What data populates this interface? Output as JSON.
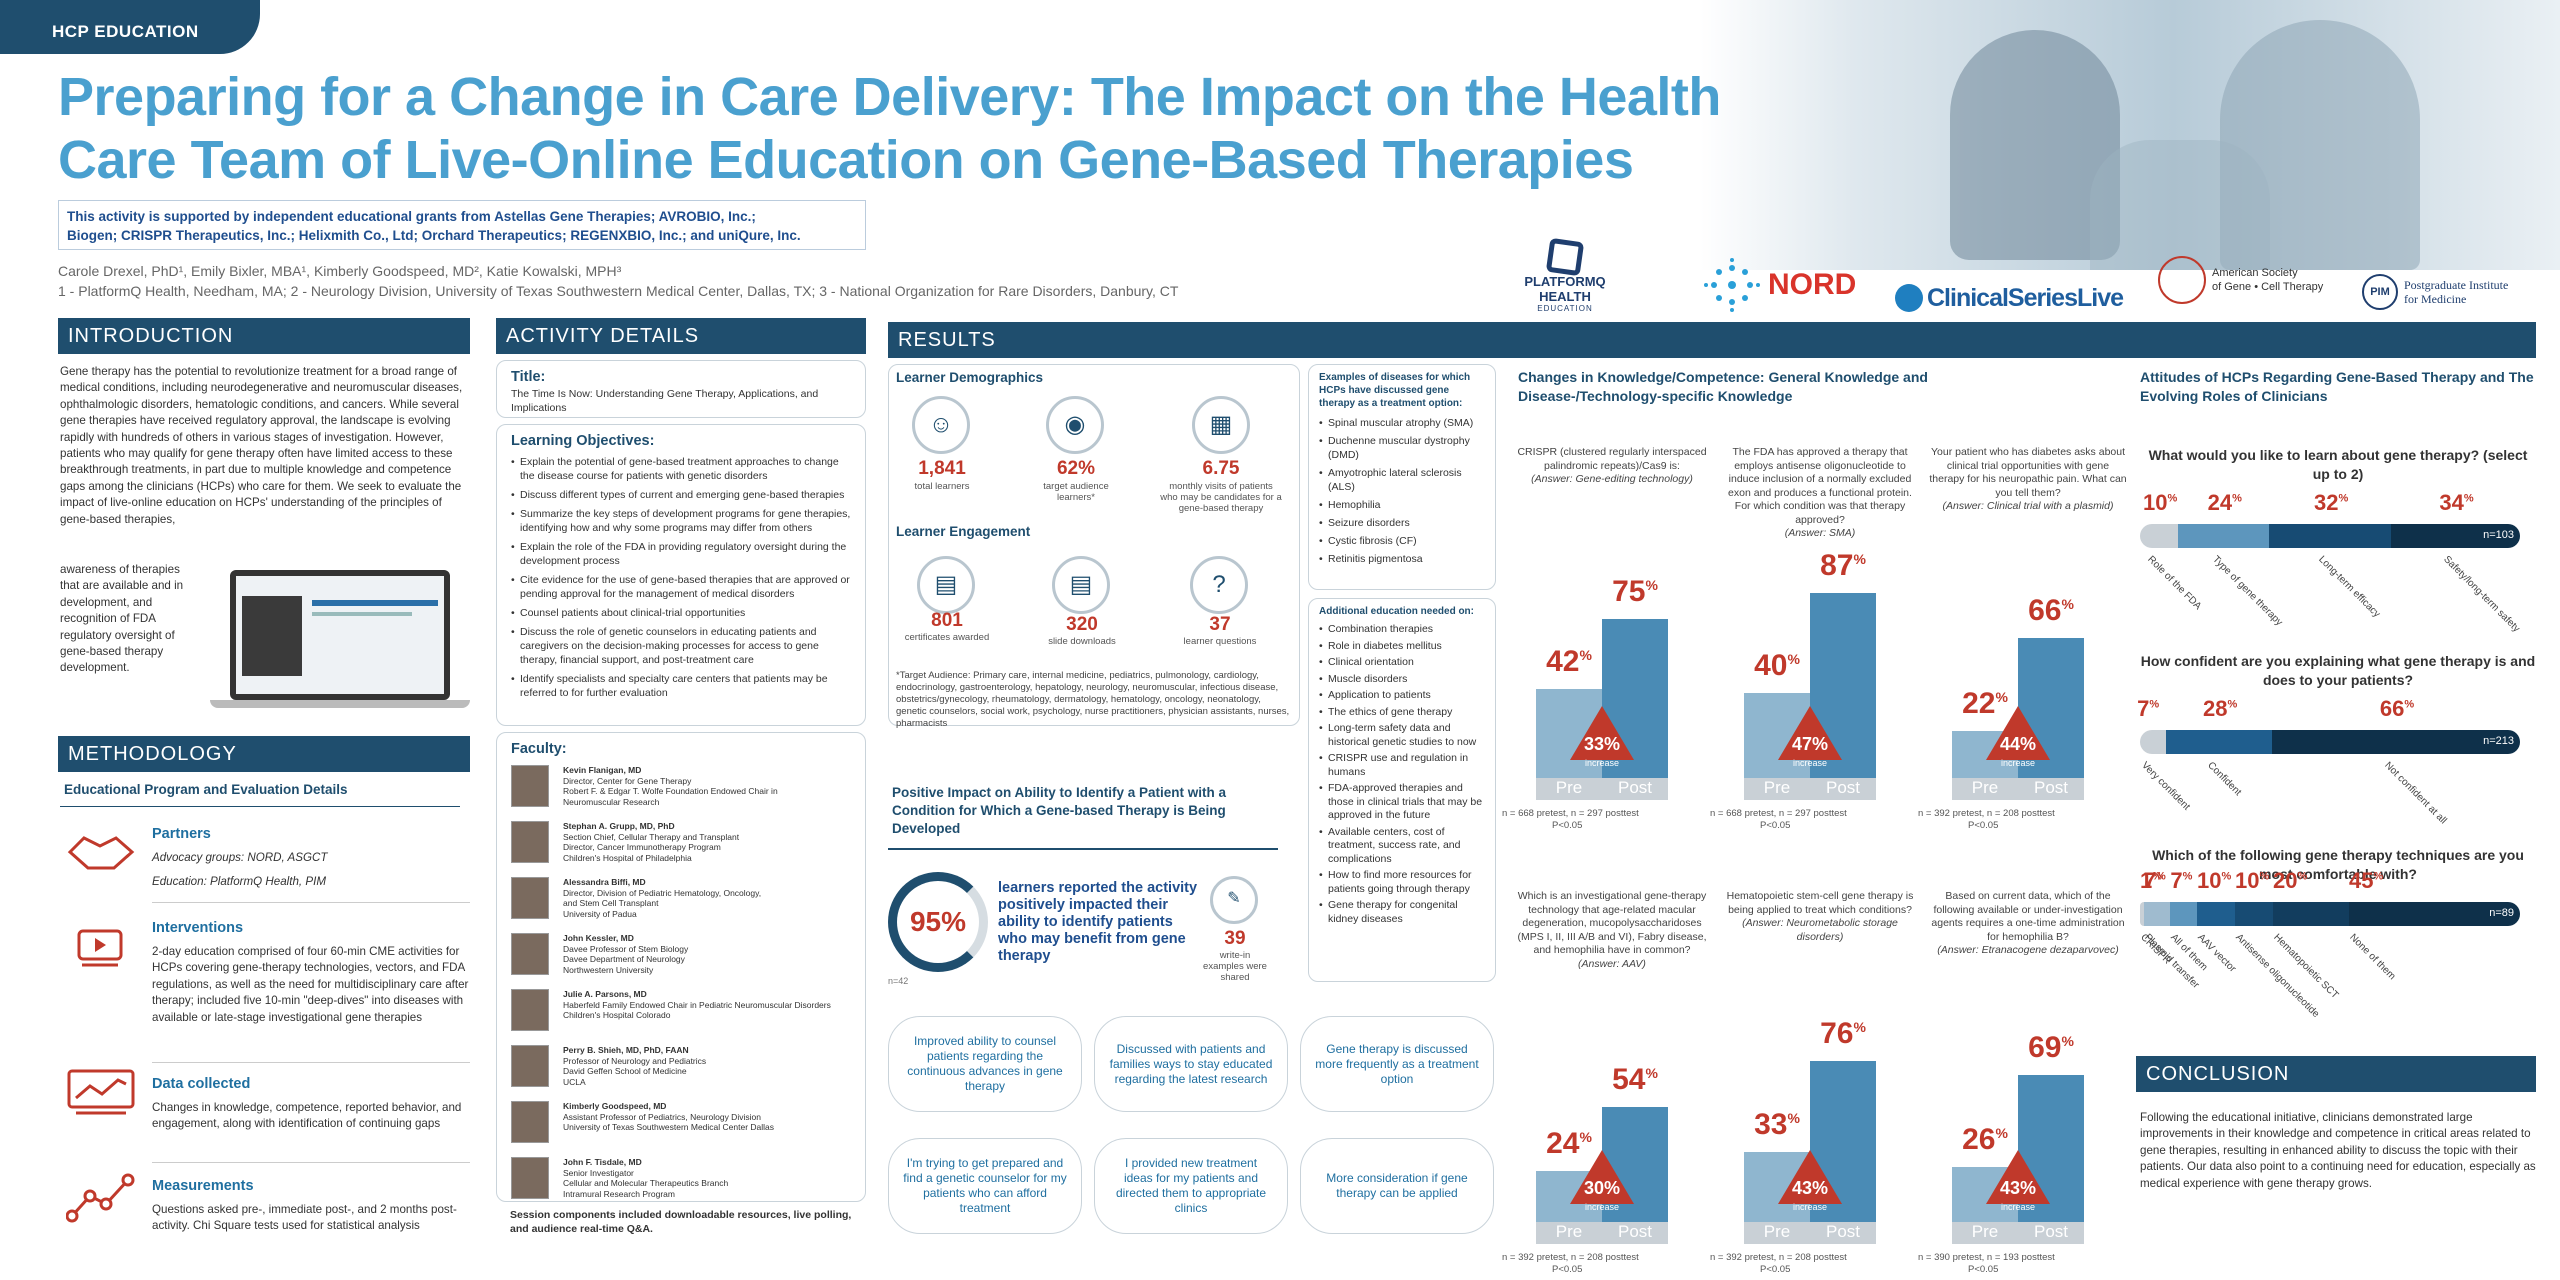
{
  "tag": "HCP EDUCATION",
  "title1": "Preparing for a Change in Care Delivery: The Impact on the Health",
  "title2": "Care Team of Live-Online Education on Gene-Based Therapies",
  "grant1": "This activity is supported by independent educational grants from Astellas Gene Therapies; AVROBIO, Inc.;",
  "grant2": "Biogen; CRISPR Therapeutics, Inc.; Helixmith Co., Ltd; Orchard Therapeutics; REGENXBIO, Inc.; and uniQure, Inc.",
  "authors": "Carole Drexel, PhD¹, Emily Bixler, MBA¹, Kimberly Goodspeed, MD², Katie Kowalski, MPH³",
  "affil": "1 - PlatformQ Health, Needham, MA; 2 - Neurology Division, University of Texas Southwestern Medical Center, Dallas, TX; 3 - National Organization for Rare Disorders, Danbury, CT",
  "logos": {
    "pq1": "PLATFORMQ HEALTH",
    "pq2": "EDUCATION",
    "nord": "NORD",
    "csl": "ClinicalSeriesLive",
    "asgct1": "American Society",
    "asgct2": "of Gene • Cell Therapy",
    "pim": "PIM",
    "pim1": "Postgraduate Institute",
    "pim2": "for Medicine"
  },
  "intro": {
    "header": "INTRODUCTION",
    "text1": "Gene therapy has the potential to revolutionize treatment for a broad range of medical conditions, including neurodegenerative and neuromuscular diseases, ophthalmologic disorders, hematologic conditions, and cancers. While several gene therapies have received regulatory approval, the landscape is evolving rapidly with hundreds of others in various stages of investigation. However, patients who may qualify for gene therapy often have limited access to these breakthrough treatments, in part due to multiple knowledge and competence gaps among the clinicians (HCPs) who care for them. We seek to evaluate the impact of live-online education on HCPs' understanding of the principles of gene-based therapies,",
    "text2": "awareness of therapies that are available and in development, and recognition of FDA regulatory oversight of gene-based therapy development."
  },
  "method": {
    "header": "METHODOLOGY",
    "subtitle": "Educational Program and Evaluation Details",
    "partners_t": "Partners",
    "partners_1": "Advocacy groups: NORD, ASGCT",
    "partners_2": "Education: PlatformQ Health, PIM",
    "interv_t": "Interventions",
    "interv": "2-day education comprised of four 60-min CME activities for HCPs covering gene-therapy technologies, vectors, and FDA regulations, as well as the need for multidisciplinary care after therapy; included five 10-min \"deep-dives\" into diseases with available or late-stage investigational gene therapies",
    "data_t": "Data collected",
    "data": "Changes in knowledge, competence, reported behavior, and engagement, along with identification of continuing gaps",
    "meas_t": "Measurements",
    "meas": "Questions asked pre-, immediate post-, and 2 months post-activity. Chi Square tests used for statistical analysis"
  },
  "activity": {
    "header": "ACTIVITY DETAILS",
    "title_t": "Title:",
    "title": "The Time Is Now: Understanding Gene Therapy, Applications, and Implications",
    "obj_t": "Learning Objectives:",
    "objectives": [
      "Explain the potential of gene-based treatment approaches to change the disease course for patients with genetic disorders",
      "Discuss different types of current and emerging gene-based therapies",
      "Summarize the key steps of development programs for gene therapies, identifying how and why some programs may differ from others",
      "Explain the role of the FDA in providing regulatory oversight during the development process",
      "Cite evidence for the use of gene-based therapies that are approved or pending approval for the management of medical disorders",
      "Counsel patients about clinical-trial opportunities",
      "Discuss the role of genetic counselors in educating patients and caregivers on the decision-making processes for access to gene therapy, financial support, and post-treatment care",
      "Identify specialists and specialty care centers that patients may be referred to for further evaluation"
    ],
    "faculty_t": "Faculty:",
    "faculty": [
      {
        "name": "Kevin Flanigan, MD",
        "l1": "Director, Center for Gene Therapy",
        "l2": "Robert F. & Edgar T. Wolfe Foundation Endowed Chair in",
        "l3": "Neuromuscular Research"
      },
      {
        "name": "Stephan A. Grupp, MD, PhD",
        "l1": "Section Chief, Cellular Therapy and Transplant",
        "l2": "Director, Cancer Immunotherapy Program",
        "l3": "Children's Hospital of Philadelphia"
      },
      {
        "name": "Alessandra Biffi, MD",
        "l1": "Director, Division of Pediatric Hematology, Oncology,",
        "l2": "and Stem Cell Transplant",
        "l3": "University of Padua"
      },
      {
        "name": "John Kessler, MD",
        "l1": "Davee Professor of Stem Biology",
        "l2": "Davee Department of Neurology",
        "l3": "Northwestern University"
      },
      {
        "name": "Julie A. Parsons, MD",
        "l1": "Haberfeld Family Endowed Chair in Pediatric Neuromuscular Disorders",
        "l2": "Children's Hospital Colorado",
        "l3": ""
      },
      {
        "name": "Perry B. Shieh, MD, PhD, FAAN",
        "l1": "Professor of Neurology and Pediatrics",
        "l2": "David Geffen School of Medicine",
        "l3": "UCLA"
      },
      {
        "name": "Kimberly Goodspeed, MD",
        "l1": "Assistant Professor of Pediatrics, Neurology Division",
        "l2": "University of Texas Southwestern Medical Center Dallas",
        "l3": ""
      },
      {
        "name": "John F. Tisdale, MD",
        "l1": "Senior Investigator",
        "l2": "Cellular and Molecular Therapeutics Branch",
        "l3": "Intramural Research Program"
      }
    ],
    "footer": "Session components included downloadable resources, live polling, and audience real-time Q&A."
  },
  "results": {
    "header": "RESULTS",
    "demo_t": "Learner Demographics",
    "learners": "1,841",
    "learners_l": "total learners",
    "target": "62%",
    "target_l": "target audience learners*",
    "visits": "6.75",
    "visits_l": "monthly visits of patients who may be candidates for a gene-based therapy",
    "engage_t": "Learner Engagement",
    "certs": "801",
    "certs_l": "certificates awarded",
    "slides": "320",
    "slides_l": "slide downloads",
    "questions": "37",
    "questions_l": "learner questions",
    "footnote": "*Target Audience: Primary care, internal medicine, pediatrics, pulmonology, cardiology, endocrinology, gastroenterology, hepatology, neurology, neuromuscular, infectious disease, obstetrics/gynecology, rheumatology, dermatology, hematology, oncology, neonatology, genetic counselors, social work, psychology, nurse practitioners, physician assistants, nurses, pharmacists",
    "diseases_t": "Examples of diseases for which HCPs have discussed gene therapy as a treatment option:",
    "diseases": [
      "Spinal muscular atrophy (SMA)",
      "Duchenne muscular dystrophy (DMD)",
      "Amyotrophic lateral sclerosis (ALS)",
      "Hemophilia",
      "Seizure disorders",
      "Cystic fibrosis (CF)",
      "Retinitis pigmentosa"
    ],
    "addl_t": "Additional education needed on:",
    "addl": [
      "Combination therapies",
      "Role in diabetes mellitus",
      "Clinical orientation",
      "Muscle disorders",
      "Application to patients",
      "The ethics of gene therapy",
      "Long-term safety data and historical genetic studies to now",
      "CRISPR use and regulation in humans",
      "FDA-approved therapies and those in clinical trials that may be approved in the future",
      "Available centers, cost of treatment, success rate, and complications",
      "How to find more resources for patients going through therapy",
      "Gene therapy for congenital kidney diseases"
    ],
    "pos_t": "Positive Impact on Ability to Identify a Patient with a Condition for Which a Gene-based Therapy is Being Developed",
    "pos_pct": "95%",
    "pos_text": "learners reported the activity positively impacted their ability to identify patients who may benefit from gene therapy",
    "pos_n": "n=42",
    "writein": "39",
    "writein_l": "write-in examples were shared",
    "quotes": [
      "Improved ability to counsel patients regarding the continuous advances in gene therapy",
      "Discussed with patients and families ways to stay educated regarding the latest research",
      "Gene therapy is discussed more frequently as a treatment option",
      "I'm trying to get prepared and find a genetic counselor for my patients who can afford treatment",
      "I provided new treatment ideas for my patients and directed them to appropriate clinics",
      "More consideration if gene therapy can be applied"
    ]
  },
  "chart_data": [
    {
      "type": "bar",
      "title": "Changes in Knowledge/Competence: General Knowledge and Disease-/Technology-specific Knowledge",
      "panels": [
        {
          "q": "CRISPR (clustered regularly interspaced palindromic repeats)/Cas9 is:",
          "a": "(Answer: Gene-editing technology)",
          "categories": [
            "Pre",
            "Post"
          ],
          "values": [
            42,
            75
          ],
          "increase": "33%",
          "n": "n = 668 pretest, n = 297 posttest",
          "p": "P<0.05"
        },
        {
          "q": "The FDA has approved a therapy that employs antisense oligonucleotide to induce inclusion of a normally excluded exon and produces a functional protein. For which condition was that therapy approved?",
          "a": "(Answer: SMA)",
          "categories": [
            "Pre",
            "Post"
          ],
          "values": [
            40,
            87
          ],
          "increase": "47%",
          "n": "n = 668 pretest, n = 297 posttest",
          "p": "P<0.05"
        },
        {
          "q": "Your patient who has diabetes asks about clinical trial opportunities with gene therapy for his neuropathic pain. What can you tell them?",
          "a": "(Answer: Clinical trial with a plasmid)",
          "categories": [
            "Pre",
            "Post"
          ],
          "values": [
            22,
            66
          ],
          "increase": "44%",
          "n": "n = 392 pretest, n = 208 posttest",
          "p": "P<0.05"
        },
        {
          "q": "Which is an investigational gene-therapy technology that age-related macular degeneration, mucopolysaccharidoses (MPS I, II, III A/B and VI), Fabry disease, and hemophilia have in common?",
          "a": "(Answer: AAV)",
          "categories": [
            "Pre",
            "Post"
          ],
          "values": [
            24,
            54
          ],
          "increase": "30%",
          "n": "n = 392 pretest, n = 208 posttest",
          "p": "P<0.05"
        },
        {
          "q": "Hematopoietic stem-cell gene therapy is being applied to treat which conditions?",
          "a": "(Answer: Neurometabolic storage disorders)",
          "categories": [
            "Pre",
            "Post"
          ],
          "values": [
            33,
            76
          ],
          "increase": "43%",
          "n": "n = 392 pretest, n = 208 posttest",
          "p": "P<0.05"
        },
        {
          "q": "Based on current data, which of the following available or under-investigation agents requires a one-time administration for hemophilia B?",
          "a": "(Answer: Etranacogene dezaparvovec)",
          "categories": [
            "Pre",
            "Post"
          ],
          "values": [
            26,
            69
          ],
          "increase": "43%",
          "n": "n = 390 pretest, n = 193 posttest",
          "p": "P<0.05"
        }
      ]
    },
    {
      "type": "bar",
      "title": "Attitudes of HCPs Regarding Gene-Based Therapy and The Evolving Roles of Clinicians",
      "stacks": [
        {
          "q": "What would you like to learn about gene therapy? (select up to 2)",
          "categories": [
            "Role of the FDA",
            "Type of gene therapy",
            "Long-term efficacy",
            "Safety/long-term safety"
          ],
          "values": [
            10,
            24,
            32,
            34
          ],
          "n": "n=103"
        },
        {
          "q": "How confident are you explaining what gene therapy is and does to your patients?",
          "categories": [
            "Very confident",
            "Confident",
            "Not confident at all"
          ],
          "values": [
            7,
            28,
            66
          ],
          "n": "n=213"
        },
        {
          "q": "Which of the following gene therapy techniques are you most comfortable with?",
          "categories": [
            "CRISPR",
            "Plasmid transfer",
            "All of them",
            "AAV vector",
            "Antisense oligonucleotide",
            "Hematopoietic SCT",
            "None of them"
          ],
          "values": [
            1,
            7,
            7,
            10,
            10,
            20,
            45
          ],
          "n": "n=89"
        }
      ]
    }
  ],
  "conclusion": {
    "header": "CONCLUSION",
    "text": "Following the educational initiative, clinicians demonstrated large improvements in their knowledge and competence in critical areas related to gene therapies, resulting in enhanced ability to discuss the topic with their patients. Our data also point to a continuing need for education, especially as medical experience with gene therapy grows."
  },
  "labels": {
    "pre": "Pre",
    "post": "Post",
    "increase": "increase"
  }
}
